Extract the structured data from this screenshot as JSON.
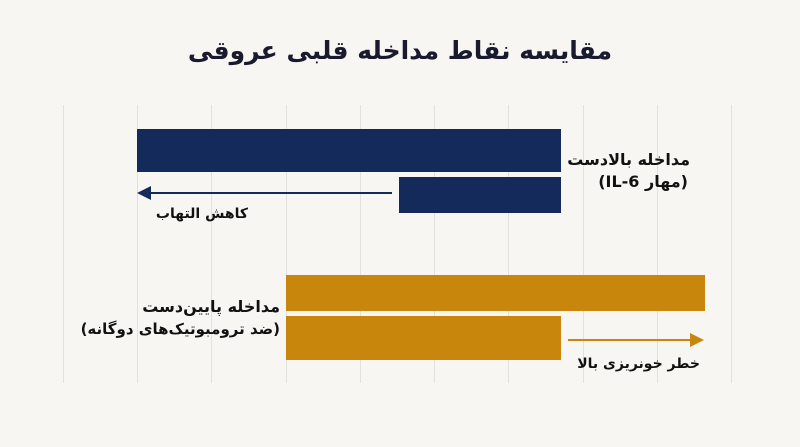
{
  "title": "مقایسه نقاط مداخله قلبی عروقی",
  "colors": {
    "navy": "#132a5a",
    "gold": "#c8860d",
    "background": "#f7f6f2"
  },
  "upstream": {
    "label_line1": "مداخله بالادست",
    "label_line2": "(مهار IL-6)",
    "arrow_label": "کاهش التهاب",
    "arrow_direction": "left"
  },
  "downstream": {
    "label_line1": "مداخله پایین‌دست",
    "label_line2": "(ضد ترومبوتیک‌های دوگانه)",
    "arrow_label": "خطر خونریزی بالا",
    "arrow_direction": "right"
  }
}
